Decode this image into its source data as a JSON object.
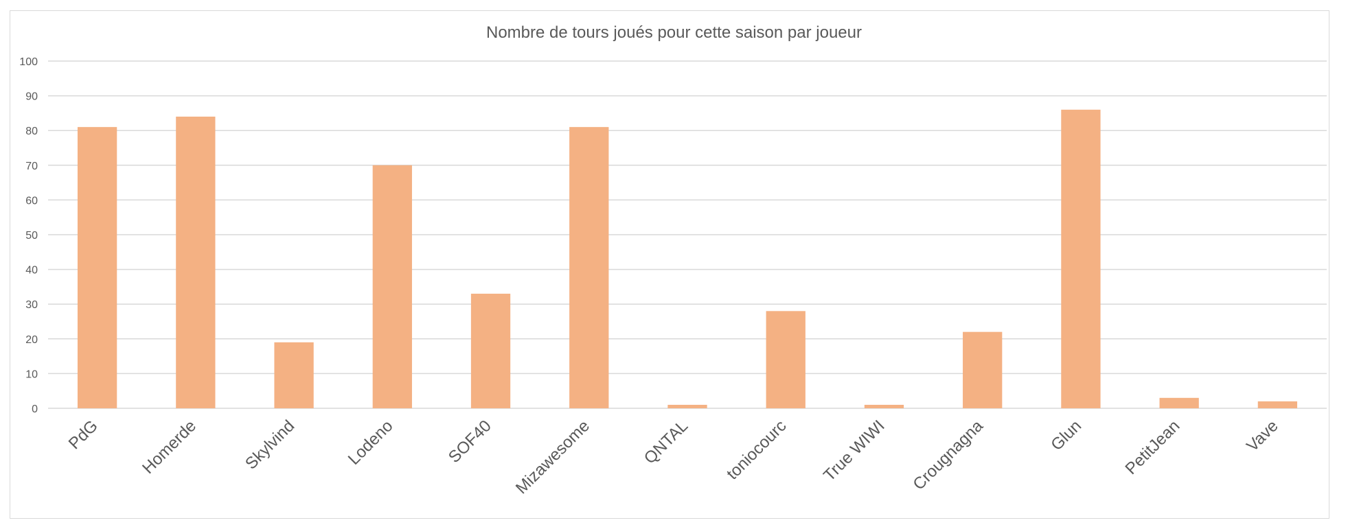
{
  "colors": {
    "bar": "#F4B183",
    "grid": "#D9D9D9",
    "text": "#595959"
  },
  "chart_data": {
    "type": "bar",
    "title": "Nombre de tours joués pour cette saison par joueur",
    "xlabel": "",
    "ylabel": "",
    "ylim": [
      0,
      100
    ],
    "yticks": [
      0,
      10,
      20,
      30,
      40,
      50,
      60,
      70,
      80,
      90,
      100
    ],
    "grid": true,
    "legend": "none",
    "categories": [
      "PdG",
      "Homerde",
      "Skylvind",
      "Lodeno",
      "SOF40",
      "Mizawesome",
      "QNTAL",
      "toniocourc",
      "True WIWI",
      "Crougnagna",
      "Glun",
      "PetitJean",
      "Vave"
    ],
    "values": [
      81,
      84,
      19,
      70,
      33,
      81,
      1,
      28,
      1,
      22,
      86,
      3,
      2
    ]
  }
}
